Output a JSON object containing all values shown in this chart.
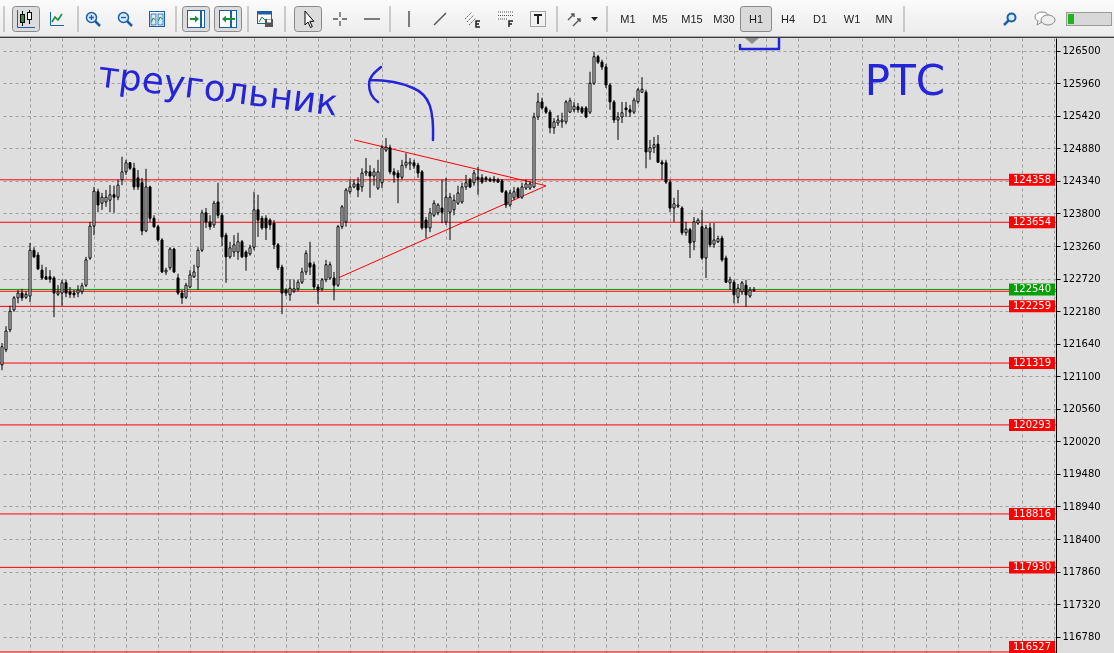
{
  "chart_data": [
    {
      "type": "other",
      "annotations": [
        "M1",
        "M5",
        "M15",
        "M30",
        "H1",
        "H4",
        "D1",
        "W1",
        "MN"
      ]
    },
    {
      "type": "candlestick",
      "categories": [
        null,
        null,
        null,
        null,
        null,
        null,
        null,
        null,
        null,
        null,
        null,
        null,
        null,
        null,
        null,
        null,
        null,
        null,
        null,
        null,
        null,
        null,
        null,
        null,
        null,
        null,
        null,
        null,
        null,
        null,
        null,
        null,
        null,
        null,
        null,
        null,
        null,
        null,
        null,
        null,
        null,
        null,
        null,
        null,
        null,
        null,
        null,
        null,
        null,
        null,
        null,
        null,
        null,
        null,
        null,
        null,
        null,
        null,
        null,
        null,
        null,
        null,
        null,
        null,
        null,
        null,
        null,
        null,
        null,
        null,
        null,
        null,
        null,
        null,
        null,
        null,
        null,
        null,
        null,
        null,
        null,
        null,
        null,
        null,
        null,
        null,
        null,
        null,
        null,
        null,
        null,
        null,
        null,
        null,
        null,
        null,
        null,
        null,
        null,
        null,
        null,
        null,
        null,
        null,
        null,
        null,
        null,
        null,
        null,
        null,
        null,
        null,
        null,
        null,
        null,
        null,
        null,
        null,
        null,
        null,
        null,
        null,
        null,
        null,
        null,
        null,
        null,
        null,
        null,
        null,
        null,
        null,
        null,
        null,
        null,
        null,
        null,
        null,
        null,
        null,
        null,
        null,
        null,
        null,
        null,
        null,
        null,
        null,
        null,
        null,
        null,
        null,
        null,
        null,
        null,
        null,
        null,
        null,
        null,
        null,
        null,
        null,
        null,
        null,
        null,
        null,
        null,
        null,
        null,
        null,
        null,
        null,
        null,
        null,
        null,
        null,
        null,
        null,
        null,
        null,
        null,
        null,
        null,
        null,
        null,
        null,
        null,
        null,
        null,
        null,
        null,
        null,
        null,
        null,
        null,
        null,
        null,
        null,
        null,
        null,
        null,
        null,
        null,
        null,
        null,
        null,
        null,
        null,
        null,
        null,
        null,
        null,
        null,
        null,
        null,
        null,
        null,
        null,
        null,
        null,
        null,
        null,
        null,
        null,
        null,
        null,
        null,
        null,
        null,
        null,
        null,
        null,
        null,
        null,
        null,
        null,
        null,
        null,
        null,
        null,
        null,
        null,
        null,
        null,
        null,
        null,
        null,
        null,
        null,
        null,
        null,
        null,
        null,
        null,
        null,
        null,
        null,
        null,
        null,
        null,
        null,
        null,
        null,
        null
      ],
      "ohlc": [
        [
          121290,
          121650,
          121200,
          121590
        ],
        [
          121540,
          121930,
          121500,
          121850
        ],
        [
          121870,
          122270,
          121830,
          122180
        ],
        [
          122200,
          122430,
          122170,
          122400
        ],
        [
          122400,
          122530,
          122310,
          122480
        ],
        [
          122480,
          122550,
          122350,
          122400
        ],
        [
          122410,
          122510,
          122380,
          122460
        ],
        [
          122430,
          123310,
          122330,
          123190
        ],
        [
          123190,
          123240,
          123060,
          123080
        ],
        [
          123110,
          123160,
          122860,
          122880
        ],
        [
          122860,
          122950,
          122700,
          122730
        ],
        [
          122750,
          122910,
          122700,
          122710
        ],
        [
          122750,
          122860,
          122650,
          122710
        ],
        [
          122730,
          122760,
          122080,
          122480
        ],
        [
          122460,
          122610,
          122430,
          122500
        ],
        [
          122480,
          122700,
          122270,
          122650
        ],
        [
          122650,
          122700,
          122410,
          122480
        ],
        [
          122500,
          122580,
          122400,
          122460
        ],
        [
          122480,
          122530,
          122400,
          122450
        ],
        [
          122480,
          122610,
          122410,
          122530
        ],
        [
          122500,
          122650,
          122460,
          122600
        ],
        [
          122610,
          123080,
          122580,
          123030
        ],
        [
          123060,
          123660,
          123030,
          123590
        ],
        [
          123590,
          124240,
          123440,
          124170
        ],
        [
          124160,
          124210,
          123820,
          123940
        ],
        [
          123970,
          124140,
          123860,
          124070
        ],
        [
          123990,
          124190,
          123910,
          124070
        ],
        [
          124020,
          124270,
          123820,
          124110
        ],
        [
          124110,
          124260,
          123810,
          124070
        ],
        [
          124070,
          124360,
          124020,
          124270
        ],
        [
          124360,
          124740,
          124270,
          124490
        ],
        [
          124490,
          124690,
          124440,
          124640
        ],
        [
          124640,
          124650,
          124520,
          124550
        ],
        [
          124550,
          124640,
          124190,
          124240
        ],
        [
          124390,
          124520,
          124190,
          124240
        ],
        [
          124310,
          124390,
          123440,
          123510
        ],
        [
          123510,
          124540,
          123490,
          124240
        ],
        [
          124240,
          124260,
          123660,
          123720
        ],
        [
          123720,
          123770,
          123560,
          123580
        ],
        [
          123580,
          123610,
          123330,
          123360
        ],
        [
          123360,
          123390,
          122810,
          122830
        ],
        [
          122830,
          122900,
          122780,
          122860
        ],
        [
          122900,
          123240,
          122860,
          123210
        ],
        [
          123210,
          123230,
          122810,
          122830
        ],
        [
          122730,
          122800,
          122450,
          122480
        ],
        [
          122480,
          122530,
          122300,
          122400
        ],
        [
          122410,
          122650,
          122380,
          122610
        ],
        [
          122580,
          122860,
          122560,
          122780
        ],
        [
          122750,
          122950,
          122730,
          122830
        ],
        [
          122910,
          123240,
          122530,
          123190
        ],
        [
          123190,
          123860,
          123160,
          123810
        ],
        [
          123810,
          123890,
          123560,
          123660
        ],
        [
          123660,
          123770,
          123530,
          123580
        ],
        [
          123610,
          124010,
          123560,
          123970
        ],
        [
          123990,
          124310,
          123720,
          123770
        ],
        [
          123770,
          123810,
          123260,
          123410
        ],
        [
          123440,
          123480,
          122650,
          123080
        ],
        [
          123080,
          123330,
          123050,
          123230
        ],
        [
          123160,
          123440,
          123080,
          123280
        ],
        [
          123160,
          123480,
          123030,
          123330
        ],
        [
          123330,
          123360,
          123060,
          123080
        ],
        [
          123160,
          123190,
          122850,
          123080
        ],
        [
          123130,
          123280,
          123100,
          123230
        ],
        [
          123240,
          124160,
          123190,
          123860
        ],
        [
          123860,
          124110,
          123410,
          123690
        ],
        [
          123720,
          123760,
          123530,
          123560
        ],
        [
          123720,
          123770,
          123360,
          123560
        ],
        [
          123690,
          123720,
          123530,
          123610
        ],
        [
          123640,
          123690,
          123210,
          123280
        ],
        [
          123280,
          123310,
          122860,
          122900
        ],
        [
          122910,
          122950,
          122130,
          122480
        ],
        [
          122530,
          122560,
          122430,
          122480
        ],
        [
          122450,
          122710,
          122350,
          122560
        ],
        [
          122510,
          122700,
          122480,
          122550
        ],
        [
          122550,
          122700,
          122510,
          122660
        ],
        [
          122660,
          122900,
          122630,
          122830
        ],
        [
          122830,
          123190,
          122780,
          123140
        ],
        [
          122980,
          123330,
          122780,
          122910
        ],
        [
          122950,
          123000,
          122530,
          122580
        ],
        [
          122580,
          122630,
          122300,
          122530
        ],
        [
          122550,
          122730,
          122510,
          122700
        ],
        [
          122700,
          123030,
          122660,
          122950
        ],
        [
          122730,
          123000,
          122700,
          122950
        ],
        [
          122730,
          122830,
          122360,
          122610
        ],
        [
          122610,
          123610,
          122580,
          123580
        ],
        [
          123580,
          123940,
          123540,
          123910
        ],
        [
          123660,
          124220,
          123580,
          124190
        ],
        [
          124160,
          124360,
          124120,
          124240
        ],
        [
          124240,
          124360,
          124220,
          124290
        ],
        [
          124290,
          124400,
          124070,
          124190
        ],
        [
          124240,
          124550,
          124160,
          124470
        ],
        [
          124470,
          124720,
          124420,
          124500
        ],
        [
          124490,
          124600,
          124060,
          124420
        ],
        [
          124420,
          124550,
          124260,
          124490
        ],
        [
          124220,
          124690,
          124190,
          124490
        ],
        [
          124310,
          124940,
          124220,
          124890
        ],
        [
          124850,
          125050,
          124820,
          124900
        ],
        [
          124890,
          124940,
          124450,
          124490
        ],
        [
          124490,
          124550,
          124310,
          124440
        ],
        [
          124470,
          124520,
          123970,
          124400
        ],
        [
          124400,
          124690,
          124360,
          124600
        ],
        [
          124600,
          124800,
          124550,
          124650
        ],
        [
          124620,
          124720,
          124520,
          124650
        ],
        [
          124640,
          124690,
          124540,
          124590
        ],
        [
          124600,
          124640,
          124390,
          124470
        ],
        [
          124490,
          124520,
          123530,
          123560
        ],
        [
          123690,
          123740,
          123390,
          123560
        ],
        [
          123560,
          123890,
          123490,
          123810
        ],
        [
          123770,
          124020,
          123740,
          123970
        ],
        [
          123810,
          123970,
          123770,
          123940
        ],
        [
          123890,
          124360,
          123640,
          123820
        ],
        [
          123660,
          124390,
          123610,
          124070
        ],
        [
          123820,
          124140,
          123360,
          124070
        ],
        [
          123860,
          124110,
          123770,
          124020
        ],
        [
          123970,
          124260,
          123940,
          124140
        ],
        [
          123990,
          124310,
          123960,
          124240
        ],
        [
          124240,
          124440,
          124190,
          124310
        ],
        [
          124360,
          124390,
          124220,
          124240
        ],
        [
          124310,
          124520,
          124260,
          124470
        ],
        [
          124400,
          124570,
          124110,
          124360
        ],
        [
          124390,
          124450,
          124290,
          124320
        ],
        [
          124390,
          124420,
          124320,
          124360
        ],
        [
          124370,
          124400,
          124320,
          124340
        ],
        [
          124370,
          124420,
          124310,
          124340
        ],
        [
          124360,
          124390,
          124310,
          124320
        ],
        [
          124340,
          124370,
          124140,
          124160
        ],
        [
          124160,
          124190,
          123890,
          123940
        ],
        [
          123940,
          124190,
          123910,
          124140
        ],
        [
          124060,
          124240,
          124020,
          124160
        ],
        [
          124210,
          124240,
          124060,
          124070
        ],
        [
          124070,
          124310,
          124040,
          124240
        ],
        [
          124220,
          124360,
          124190,
          124290
        ],
        [
          124220,
          124340,
          124190,
          124290
        ],
        [
          124240,
          125470,
          124220,
          125400
        ],
        [
          125400,
          125800,
          125350,
          125650
        ],
        [
          125650,
          125720,
          125520,
          125550
        ],
        [
          125550,
          125580,
          125450,
          125480
        ],
        [
          125480,
          125520,
          125130,
          125220
        ],
        [
          125220,
          125380,
          125120,
          125320
        ],
        [
          125300,
          125430,
          125250,
          125350
        ],
        [
          125320,
          125470,
          125220,
          125350
        ],
        [
          125320,
          125680,
          125280,
          125650
        ],
        [
          125480,
          125720,
          125470,
          125670
        ],
        [
          125520,
          125650,
          125480,
          125580
        ],
        [
          125570,
          125630,
          125470,
          125520
        ],
        [
          125550,
          125580,
          125450,
          125480
        ],
        [
          125550,
          125580,
          125380,
          125400
        ],
        [
          125480,
          126150,
          125450,
          125960
        ],
        [
          125960,
          126480,
          125930,
          126400
        ],
        [
          126400,
          126430,
          126280,
          126310
        ],
        [
          126310,
          126350,
          126180,
          126230
        ],
        [
          126230,
          126280,
          125880,
          125930
        ],
        [
          125930,
          125960,
          125520,
          125650
        ],
        [
          125650,
          125680,
          125300,
          125350
        ],
        [
          125350,
          125480,
          125020,
          125400
        ],
        [
          125400,
          125650,
          125300,
          125470
        ],
        [
          125550,
          125650,
          125400,
          125520
        ],
        [
          125520,
          125600,
          125400,
          125480
        ],
        [
          125480,
          125720,
          125450,
          125680
        ],
        [
          125650,
          125880,
          125620,
          125850
        ],
        [
          125810,
          126060,
          125800,
          125860
        ],
        [
          125810,
          125850,
          124550,
          124820
        ],
        [
          124820,
          125020,
          124690,
          124890
        ],
        [
          124890,
          125070,
          124800,
          124940
        ],
        [
          124950,
          125100,
          124640,
          124650
        ],
        [
          124650,
          124690,
          124360,
          124620
        ],
        [
          124640,
          124690,
          124290,
          124320
        ],
        [
          124320,
          124360,
          123820,
          123890
        ],
        [
          123890,
          124060,
          123660,
          123960
        ],
        [
          123920,
          124190,
          123890,
          123940
        ],
        [
          123890,
          123920,
          123440,
          123480
        ],
        [
          123480,
          123660,
          123430,
          123540
        ],
        [
          123530,
          123560,
          123060,
          123310
        ],
        [
          123330,
          123740,
          123190,
          123660
        ],
        [
          123640,
          123720,
          123610,
          123690
        ],
        [
          123580,
          123860,
          123030,
          123060
        ],
        [
          123060,
          123610,
          122730,
          123560
        ],
        [
          123560,
          123640,
          123240,
          123280
        ],
        [
          123290,
          123640,
          123230,
          123360
        ],
        [
          123330,
          123430,
          123310,
          123380
        ],
        [
          123390,
          123430,
          123000,
          123030
        ],
        [
          123060,
          123100,
          122650,
          122660
        ],
        [
          122650,
          122750,
          122530,
          122700
        ],
        [
          122660,
          122700,
          122310,
          122450
        ],
        [
          122410,
          122630,
          122310,
          122560
        ],
        [
          122500,
          122680,
          122450,
          122650
        ],
        [
          122610,
          122700,
          122250,
          122450
        ],
        [
          122430,
          122580,
          122400,
          122530
        ],
        [
          122520,
          122580,
          122500,
          122540
        ],
        null,
        null,
        null,
        null,
        null,
        null,
        null,
        null,
        null,
        null,
        null,
        null,
        null,
        null,
        null,
        null,
        null,
        null,
        null,
        null,
        null,
        null,
        null,
        null,
        null,
        null,
        null,
        null,
        null,
        null,
        null,
        null,
        null,
        null,
        null,
        null,
        null,
        null,
        null,
        null,
        null,
        null,
        null,
        null,
        null,
        null,
        null,
        null,
        null,
        null,
        null,
        null,
        null,
        null,
        null,
        null,
        null,
        null,
        null,
        null,
        null,
        null,
        null,
        null,
        null,
        null,
        null,
        null,
        null,
        null,
        null,
        null,
        null,
        null,
        null
      ],
      "series": [
        {
          "type": "line",
          "color": "#ff0000",
          "values": [
            null,
            null,
            null,
            null,
            null,
            null,
            null,
            null,
            null,
            null,
            null,
            null,
            null,
            null,
            null,
            null,
            null,
            null,
            null,
            null,
            null,
            null,
            null,
            null,
            null,
            null,
            null,
            null,
            null,
            null,
            null,
            null,
            null,
            null,
            null,
            null,
            null,
            null,
            null,
            null,
            null,
            null,
            null,
            null,
            null,
            null,
            null,
            null,
            null,
            null,
            null,
            null,
            null,
            null,
            null,
            null,
            null,
            null,
            null,
            null,
            null,
            null,
            null,
            null,
            null,
            null,
            null,
            null,
            null,
            null,
            null,
            null,
            null,
            null,
            null,
            null,
            null,
            null,
            null,
            null,
            null,
            null,
            null,
            null,
            null,
            null,
            null,
            null,
            125020,
            null,
            null,
            null,
            null,
            null,
            null,
            null,
            null,
            null,
            null,
            null,
            null,
            null,
            null,
            null,
            null,
            null,
            null,
            null,
            null,
            null,
            null,
            null,
            null,
            null,
            null,
            null,
            null,
            null,
            null,
            null,
            null,
            null,
            null,
            null,
            null,
            null,
            null,
            null,
            null,
            null,
            null,
            null,
            null,
            null,
            null,
            null,
            124260,
            null,
            null,
            null,
            null,
            null,
            null,
            null,
            null,
            null,
            null,
            null,
            null,
            null,
            null,
            null,
            null,
            null,
            null,
            null,
            null,
            null,
            null,
            null,
            null,
            null,
            null,
            null,
            null,
            null,
            null,
            null,
            null,
            null,
            null,
            null,
            null,
            null,
            null,
            null,
            null,
            null,
            null,
            null,
            null,
            null,
            null,
            null,
            null,
            null,
            null,
            null,
            null,
            null,
            null,
            null,
            null,
            null,
            null,
            null,
            null,
            null,
            null,
            null,
            null,
            null,
            null,
            null,
            null,
            null,
            null,
            null,
            null,
            null,
            null,
            null,
            null,
            null,
            null,
            null,
            null,
            null,
            null,
            null,
            null,
            null,
            null,
            null,
            null,
            null,
            null,
            null,
            null,
            null,
            null,
            null,
            null,
            null,
            null,
            null,
            null,
            null,
            null,
            null,
            null,
            null,
            null,
            null,
            null,
            null,
            null,
            null,
            null,
            null,
            null,
            null,
            null,
            null,
            null,
            null,
            null,
            null,
            null,
            null,
            null,
            null,
            null,
            null
          ]
        },
        {
          "type": "line",
          "color": "#ff0000",
          "values": [
            null,
            null,
            null,
            null,
            null,
            null,
            null,
            null,
            null,
            null,
            null,
            null,
            null,
            null,
            null,
            null,
            null,
            null,
            null,
            null,
            null,
            null,
            null,
            null,
            null,
            null,
            null,
            null,
            null,
            null,
            null,
            null,
            null,
            null,
            null,
            null,
            null,
            null,
            null,
            null,
            null,
            null,
            null,
            null,
            null,
            null,
            null,
            null,
            null,
            null,
            null,
            null,
            null,
            null,
            null,
            null,
            null,
            null,
            null,
            null,
            null,
            null,
            null,
            null,
            null,
            null,
            null,
            null,
            null,
            null,
            null,
            null,
            null,
            null,
            null,
            null,
            null,
            null,
            null,
            null,
            null,
            null,
            null,
            null,
            122730,
            null,
            null,
            null,
            null,
            null,
            null,
            null,
            null,
            null,
            null,
            null,
            null,
            null,
            null,
            null,
            null,
            null,
            null,
            null,
            null,
            null,
            null,
            null,
            null,
            null,
            null,
            null,
            null,
            null,
            null,
            null,
            null,
            null,
            null,
            null,
            null,
            null,
            null,
            null,
            null,
            null,
            null,
            null,
            null,
            null,
            null,
            null,
            null,
            null,
            null,
            null,
            124260,
            null,
            null,
            null,
            null,
            null,
            null,
            null,
            null,
            null,
            null,
            null,
            null,
            null,
            null,
            null,
            null,
            null,
            null,
            null,
            null,
            null,
            null,
            null,
            null,
            null,
            null,
            null,
            null,
            null,
            null,
            null,
            null,
            null,
            null,
            null,
            null,
            null,
            null,
            null,
            null,
            null,
            null,
            null,
            null,
            null,
            null,
            null,
            null,
            null,
            null,
            null,
            null,
            null,
            null,
            null,
            null,
            null,
            null,
            null,
            null,
            null,
            null,
            null,
            null,
            null,
            null,
            null,
            null,
            null,
            null,
            null,
            null,
            null,
            null,
            null,
            null,
            null,
            null,
            null,
            null,
            null,
            null,
            null,
            null,
            null,
            null,
            null,
            null,
            null,
            null,
            null,
            null,
            null,
            null,
            null,
            null,
            null,
            null,
            null,
            null,
            null,
            null,
            null,
            null,
            null,
            null,
            null,
            null,
            null,
            null,
            null,
            null,
            null,
            null,
            null,
            null,
            null,
            null,
            null,
            null,
            null,
            null,
            null,
            null,
            null,
            null,
            null
          ]
        }
      ],
      "ylim": [
        116510,
        126710
      ],
      "yticks": [
        116780,
        117320,
        117860,
        118400,
        118940,
        119480,
        120020,
        120560,
        121100,
        121640,
        122180,
        122720,
        123260,
        123800,
        124340,
        124880,
        125420,
        125960,
        126500
      ],
      "grid": true,
      "tick_labels": "y",
      "ref_lines": [
        {
          "axis": "y",
          "value": 124358,
          "label": "124358",
          "color": "#ff0000"
        },
        {
          "axis": "y",
          "value": 123654,
          "label": "123654",
          "color": "#ff0000"
        },
        {
          "axis": "y",
          "value": 122540,
          "label": "122540",
          "color": "#00a000"
        },
        {
          "axis": "y",
          "value": 122510,
          "color": "#ff0000"
        },
        {
          "axis": "y",
          "value": 122259,
          "label": "122259",
          "color": "#ff0000"
        },
        {
          "axis": "y",
          "value": 121319,
          "label": "121319",
          "color": "#ff0000"
        },
        {
          "axis": "y",
          "value": 120293,
          "label": "120293",
          "color": "#ff0000"
        },
        {
          "axis": "y",
          "value": 118816,
          "label": "118816",
          "color": "#ff0000"
        },
        {
          "axis": "y",
          "value": 117930,
          "label": "117930",
          "color": "#ff0000"
        },
        {
          "axis": "y",
          "value": 116527,
          "label": "116527",
          "color": "#ff0000"
        }
      ],
      "annotations": [
        "треугольник",
        "РТС"
      ]
    }
  ]
}
